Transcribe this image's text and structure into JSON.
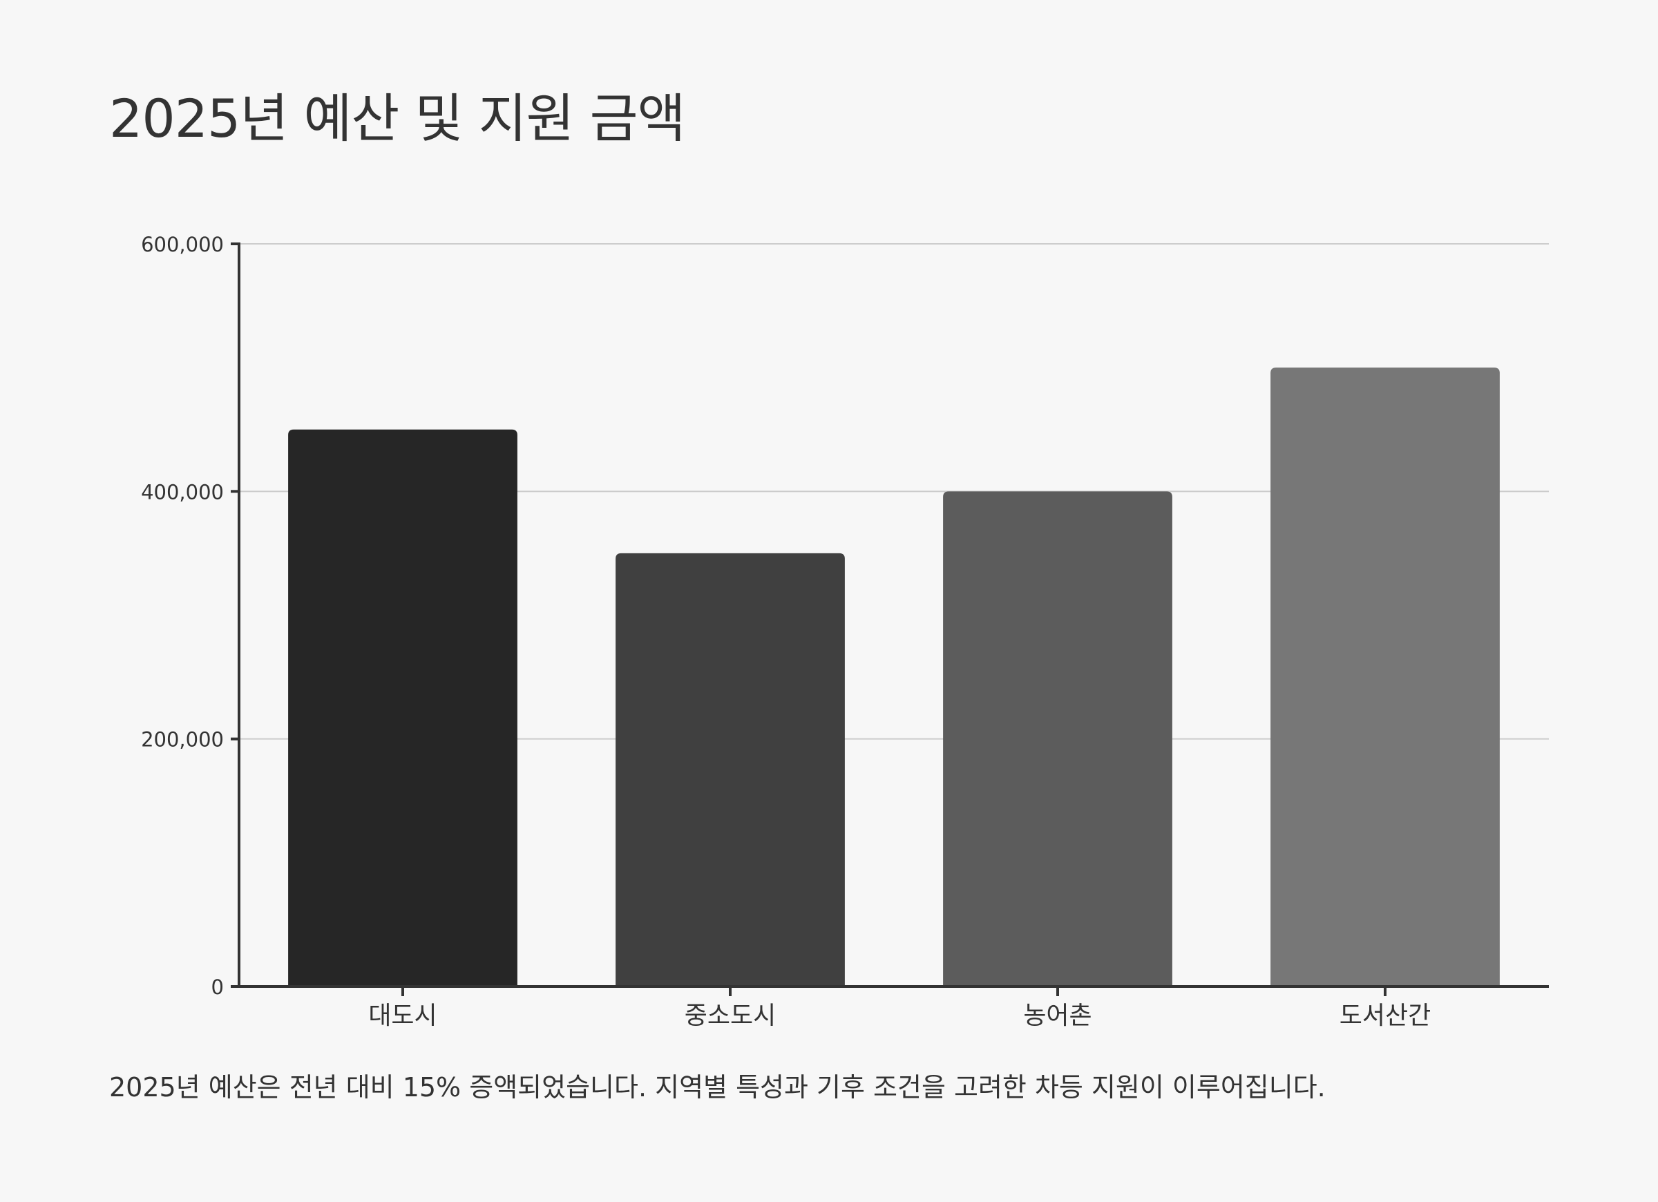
{
  "chart_data": {
    "type": "bar",
    "title": "2025년 예산 및 지원 금액",
    "categories": [
      "대도시",
      "중소도시",
      "농어촌",
      "도서산간"
    ],
    "values": [
      450000,
      350000,
      400000,
      500000
    ],
    "bar_colors": [
      "#262626",
      "#404040",
      "#5c5c5c",
      "#777777"
    ],
    "ylim": [
      0,
      600000
    ],
    "yticks": [
      0,
      200000,
      400000,
      600000
    ],
    "ytick_labels": [
      "0",
      "200,000",
      "400,000",
      "600,000"
    ],
    "xlabel": "",
    "ylabel": "",
    "grid": true,
    "legend": "none"
  },
  "footnote": "2025년 예산은 전년 대비 15% 증액되었습니다. 지역별 특성과 기후 조건을 고려한 차등 지원이 이루어집니다.",
  "colors": {
    "background": "#f7f7f7",
    "text": "#333333",
    "axis": "#333333",
    "grid": "#cccccc"
  }
}
